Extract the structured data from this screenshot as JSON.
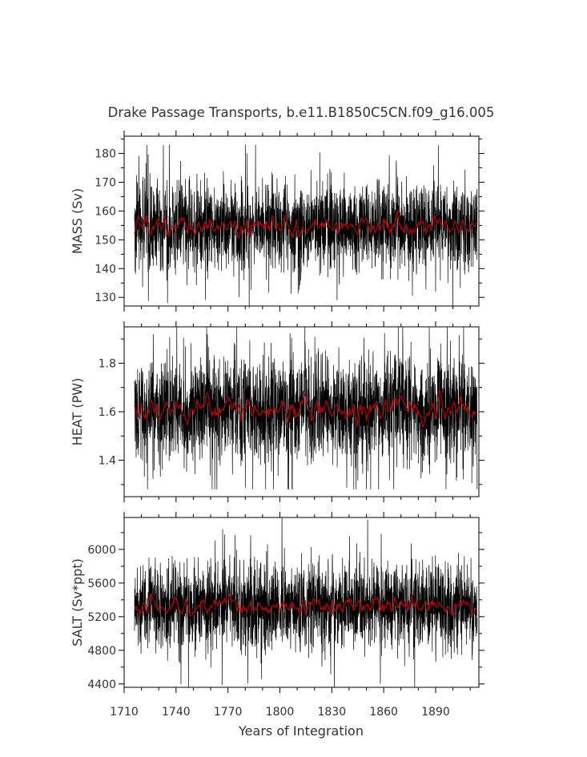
{
  "title": "Drake Passage Transports, b.e11.B1850C5CN.f09_g16.005",
  "xlabel": "Years of Integration",
  "colors": {
    "raw": "#000000",
    "smoothed": "#cc0000",
    "text": "#333333"
  },
  "chart_data": [
    {
      "type": "line",
      "panel": "mass",
      "ylabel": "MASS (Sv)",
      "xlim": [
        1710,
        1915
      ],
      "ylim": [
        127,
        186
      ],
      "xticks": [
        1710,
        1740,
        1770,
        1800,
        1830,
        1860,
        1890
      ],
      "yticks": [
        130,
        140,
        150,
        160,
        170,
        180
      ],
      "yticklabels": [
        "130",
        "140",
        "150",
        "160",
        "170",
        "180"
      ],
      "x_range": [
        1716,
        1914
      ],
      "series": [
        {
          "style": "raw monthly",
          "mean": 155,
          "spread": 7.5,
          "min": 126,
          "max": 183
        },
        {
          "style": "smoothed",
          "mean": 155,
          "spread": 2.2
        }
      ]
    },
    {
      "type": "line",
      "panel": "heat",
      "ylabel": "HEAT (PW)",
      "xlim": [
        1710,
        1915
      ],
      "ylim": [
        1.25,
        1.95
      ],
      "xticks": [
        1710,
        1740,
        1770,
        1800,
        1830,
        1860,
        1890
      ],
      "yticks": [
        1.4,
        1.6,
        1.8
      ],
      "yticklabels": [
        "1.4",
        "1.6",
        "1.8"
      ],
      "x_range": [
        1716,
        1914
      ],
      "series": [
        {
          "style": "raw monthly",
          "mean": 1.61,
          "spread": 0.11,
          "min": 1.28,
          "max": 1.95
        },
        {
          "style": "smoothed",
          "mean": 1.61,
          "spread": 0.03
        }
      ]
    },
    {
      "type": "line",
      "panel": "salt",
      "ylabel": "SALT (Sv*ppt)",
      "xlim": [
        1710,
        1915
      ],
      "ylim": [
        4360,
        6380
      ],
      "xticks": [
        1710,
        1740,
        1770,
        1800,
        1830,
        1860,
        1890
      ],
      "xticklabels": [
        "1710",
        "1740",
        "1770",
        "1800",
        "1830",
        "1860",
        "1890"
      ],
      "yticks": [
        4400,
        4800,
        5200,
        5600,
        6000
      ],
      "yticklabels": [
        "4400",
        "4800",
        "5200",
        "5600",
        "6000"
      ],
      "x_range": [
        1716,
        1914
      ],
      "series": [
        {
          "style": "raw monthly",
          "mean": 5330,
          "spread": 260,
          "min": 4360,
          "max": 6380
        },
        {
          "style": "smoothed",
          "mean": 5330,
          "spread": 75
        }
      ]
    }
  ]
}
